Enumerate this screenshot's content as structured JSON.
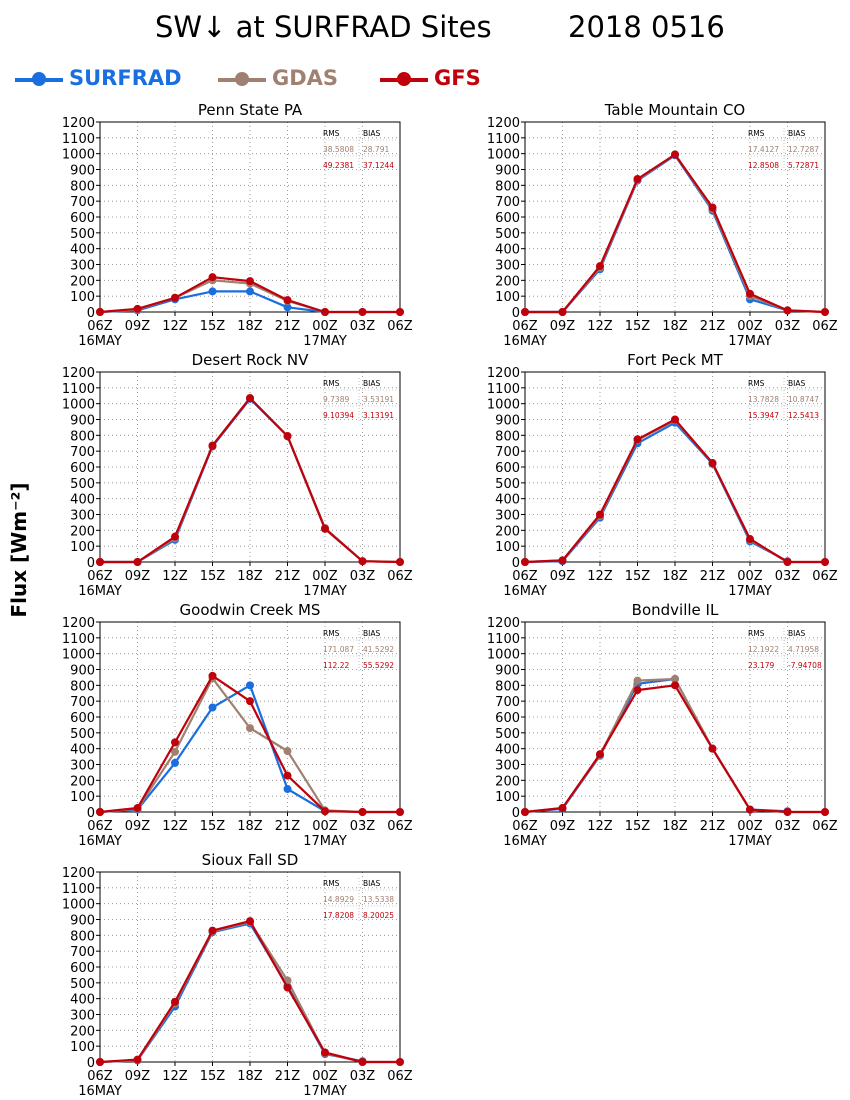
{
  "figure": {
    "title_left": "SW↓ at SURFRAD Sites",
    "title_right": "2018 0516",
    "ylabel": "Flux [Wm⁻²]"
  },
  "legend": [
    {
      "name": "SURFRAD",
      "color": "#1a6ee0"
    },
    {
      "name": "GDAS",
      "color": "#a08070"
    },
    {
      "name": "GFS",
      "color": "#c0000a"
    }
  ],
  "chart_data": [
    {
      "type": "line",
      "title": "Penn State PA",
      "x": [
        "06Z",
        "09Z",
        "12Z",
        "15Z",
        "18Z",
        "21Z",
        "00Z",
        "03Z",
        "06Z"
      ],
      "date_labels": [
        "16MAY",
        "17MAY"
      ],
      "ylim": [
        0,
        1200
      ],
      "yticks": [
        0,
        100,
        200,
        300,
        400,
        500,
        600,
        700,
        800,
        900,
        1000,
        1100,
        1200
      ],
      "grid": true,
      "stats": {
        "header": [
          "RMS",
          "BIAS"
        ],
        "GDAS": [
          "38.5808",
          "28.791"
        ],
        "GFS": [
          "49.2381",
          "37.1244"
        ]
      },
      "series": [
        {
          "name": "SURFRAD",
          "values": [
            0,
            10,
            80,
            130,
            130,
            30,
            0,
            null,
            null
          ]
        },
        {
          "name": "GDAS",
          "values": [
            0,
            15,
            90,
            200,
            180,
            70,
            0,
            0,
            0
          ]
        },
        {
          "name": "GFS",
          "values": [
            0,
            20,
            90,
            220,
            195,
            75,
            0,
            0,
            0
          ]
        }
      ]
    },
    {
      "type": "line",
      "title": "Table Mountain CO",
      "x": [
        "06Z",
        "09Z",
        "12Z",
        "15Z",
        "18Z",
        "21Z",
        "00Z",
        "03Z",
        "06Z"
      ],
      "date_labels": [
        "16MAY",
        "17MAY"
      ],
      "ylim": [
        0,
        1200
      ],
      "yticks": [
        0,
        100,
        200,
        300,
        400,
        500,
        600,
        700,
        800,
        900,
        1000,
        1100,
        1200
      ],
      "grid": true,
      "stats": {
        "header": [
          "RMS",
          "BIAS"
        ],
        "GDAS": [
          "17.4127",
          "12.7287"
        ],
        "GFS": [
          "12.8508",
          "5.72871"
        ]
      },
      "series": [
        {
          "name": "SURFRAD",
          "values": [
            0,
            0,
            270,
            830,
            990,
            640,
            80,
            10,
            null
          ]
        },
        {
          "name": "GDAS",
          "values": [
            0,
            0,
            280,
            835,
            995,
            650,
            100,
            10,
            0
          ]
        },
        {
          "name": "GFS",
          "values": [
            0,
            0,
            290,
            840,
            995,
            660,
            115,
            10,
            0
          ]
        }
      ]
    },
    {
      "type": "line",
      "title": "Desert Rock NV",
      "x": [
        "06Z",
        "09Z",
        "12Z",
        "15Z",
        "18Z",
        "21Z",
        "00Z",
        "03Z",
        "06Z"
      ],
      "date_labels": [
        "16MAY",
        "17MAY"
      ],
      "ylim": [
        0,
        1200
      ],
      "yticks": [
        0,
        100,
        200,
        300,
        400,
        500,
        600,
        700,
        800,
        900,
        1000,
        1100,
        1200
      ],
      "grid": true,
      "stats": {
        "header": [
          "RMS",
          "BIAS"
        ],
        "GDAS": [
          "9.7389",
          "3.53191"
        ],
        "GFS": [
          "9.10394",
          "3.13191"
        ]
      },
      "series": [
        {
          "name": "SURFRAD",
          "values": [
            0,
            0,
            140,
            730,
            1030,
            795,
            210,
            5,
            null
          ]
        },
        {
          "name": "GDAS",
          "values": [
            0,
            0,
            150,
            735,
            1035,
            795,
            215,
            5,
            0
          ]
        },
        {
          "name": "GFS",
          "values": [
            0,
            0,
            160,
            735,
            1035,
            795,
            210,
            5,
            0
          ]
        }
      ]
    },
    {
      "type": "line",
      "title": "Fort Peck MT",
      "x": [
        "06Z",
        "09Z",
        "12Z",
        "15Z",
        "18Z",
        "21Z",
        "00Z",
        "03Z",
        "06Z"
      ],
      "date_labels": [
        "16MAY",
        "17MAY"
      ],
      "ylim": [
        0,
        1200
      ],
      "yticks": [
        0,
        100,
        200,
        300,
        400,
        500,
        600,
        700,
        800,
        900,
        1000,
        1100,
        1200
      ],
      "grid": true,
      "stats": {
        "header": [
          "RMS",
          "BIAS"
        ],
        "GDAS": [
          "13.7828",
          "10.8747"
        ],
        "GFS": [
          "15.3947",
          "12.5413"
        ]
      },
      "series": [
        {
          "name": "SURFRAD",
          "values": [
            0,
            5,
            280,
            750,
            880,
            620,
            130,
            5,
            null
          ]
        },
        {
          "name": "GDAS",
          "values": [
            0,
            10,
            290,
            770,
            895,
            625,
            140,
            0,
            0
          ]
        },
        {
          "name": "GFS",
          "values": [
            0,
            10,
            300,
            775,
            900,
            625,
            145,
            0,
            0
          ]
        }
      ]
    },
    {
      "type": "line",
      "title": "Goodwin Creek MS",
      "x": [
        "06Z",
        "09Z",
        "12Z",
        "15Z",
        "18Z",
        "21Z",
        "00Z",
        "03Z",
        "06Z"
      ],
      "date_labels": [
        "16MAY",
        "17MAY"
      ],
      "ylim": [
        0,
        1200
      ],
      "yticks": [
        0,
        100,
        200,
        300,
        400,
        500,
        600,
        700,
        800,
        900,
        1000,
        1100,
        1200
      ],
      "grid": true,
      "stats": {
        "header": [
          "RMS",
          "BIAS"
        ],
        "GDAS": [
          "171.087",
          "41.5292"
        ],
        "GFS": [
          "112.22",
          "55.5292"
        ]
      },
      "series": [
        {
          "name": "SURFRAD",
          "values": [
            0,
            15,
            310,
            660,
            800,
            145,
            5,
            null,
            null
          ]
        },
        {
          "name": "GDAS",
          "values": [
            0,
            20,
            380,
            845,
            530,
            385,
            10,
            0,
            0
          ]
        },
        {
          "name": "GFS",
          "values": [
            0,
            25,
            440,
            860,
            700,
            230,
            5,
            0,
            0
          ]
        }
      ]
    },
    {
      "type": "line",
      "title": "Bondville IL",
      "x": [
        "06Z",
        "09Z",
        "12Z",
        "15Z",
        "18Z",
        "21Z",
        "00Z",
        "03Z",
        "06Z"
      ],
      "date_labels": [
        "16MAY",
        "17MAY"
      ],
      "ylim": [
        0,
        1200
      ],
      "yticks": [
        0,
        100,
        200,
        300,
        400,
        500,
        600,
        700,
        800,
        900,
        1000,
        1100,
        1200
      ],
      "grid": true,
      "stats": {
        "header": [
          "RMS",
          "BIAS"
        ],
        "GDAS": [
          "12.1922",
          "4.71958"
        ],
        "GFS": [
          "23.179",
          "-7.94708"
        ]
      },
      "series": [
        {
          "name": "SURFRAD",
          "values": [
            0,
            20,
            355,
            810,
            840,
            400,
            15,
            5,
            null
          ]
        },
        {
          "name": "GDAS",
          "values": [
            0,
            25,
            360,
            830,
            840,
            400,
            15,
            0,
            0
          ]
        },
        {
          "name": "GFS",
          "values": [
            0,
            25,
            365,
            770,
            800,
            400,
            15,
            0,
            0
          ]
        }
      ]
    },
    {
      "type": "line",
      "title": "Sioux Fall SD",
      "x": [
        "06Z",
        "09Z",
        "12Z",
        "15Z",
        "18Z",
        "21Z",
        "00Z",
        "03Z",
        "06Z"
      ],
      "date_labels": [
        "16MAY",
        "17MAY"
      ],
      "ylim": [
        0,
        1200
      ],
      "yticks": [
        0,
        100,
        200,
        300,
        400,
        500,
        600,
        700,
        800,
        900,
        1000,
        1100,
        1200
      ],
      "grid": true,
      "stats": {
        "header": [
          "RMS",
          "BIAS"
        ],
        "GDAS": [
          "14.8929",
          "13.5338"
        ],
        "GFS": [
          "17.8208",
          "8.20025"
        ]
      },
      "series": [
        {
          "name": "SURFRAD",
          "values": [
            0,
            10,
            350,
            820,
            875,
            480,
            50,
            5,
            null
          ]
        },
        {
          "name": "GDAS",
          "values": [
            0,
            10,
            370,
            825,
            885,
            515,
            55,
            0,
            0
          ]
        },
        {
          "name": "GFS",
          "values": [
            0,
            15,
            380,
            830,
            890,
            470,
            60,
            0,
            0
          ]
        }
      ]
    }
  ]
}
